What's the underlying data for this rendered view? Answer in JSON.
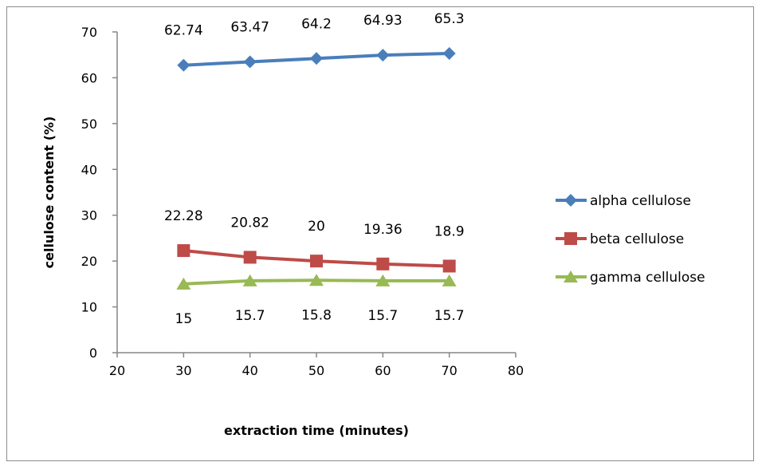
{
  "chart_data": {
    "type": "line",
    "xlabel": "extraction time (minutes)",
    "ylabel": "cellulose content (%)",
    "xlim": [
      20,
      80
    ],
    "ylim": [
      0,
      70
    ],
    "xticks": [
      20,
      30,
      40,
      50,
      60,
      70,
      80
    ],
    "yticks": [
      0,
      10,
      20,
      30,
      40,
      50,
      60,
      70
    ],
    "grid": false,
    "legend_position": "right",
    "x": [
      30,
      40,
      50,
      60,
      70
    ],
    "series": [
      {
        "name": "alpha cellulose",
        "color": "#4a7ebb",
        "marker": "diamond",
        "values": [
          62.74,
          63.47,
          64.2,
          64.93,
          65.3
        ],
        "labels": [
          "62.74",
          "63.47",
          "64.2",
          "64.93",
          "65.3"
        ],
        "label_position": "above"
      },
      {
        "name": "beta cellulose",
        "color": "#be4b48",
        "marker": "square",
        "values": [
          22.28,
          20.82,
          20,
          19.36,
          18.9
        ],
        "labels": [
          "22.28",
          "20.82",
          "20",
          "19.36",
          "18.9"
        ],
        "label_position": "above"
      },
      {
        "name": "gamma cellulose",
        "color": "#98b954",
        "marker": "triangle",
        "values": [
          15,
          15.7,
          15.8,
          15.7,
          15.7
        ],
        "labels": [
          "15",
          "15.7",
          "15.8",
          "15.7",
          "15.7"
        ],
        "label_position": "below"
      }
    ]
  }
}
